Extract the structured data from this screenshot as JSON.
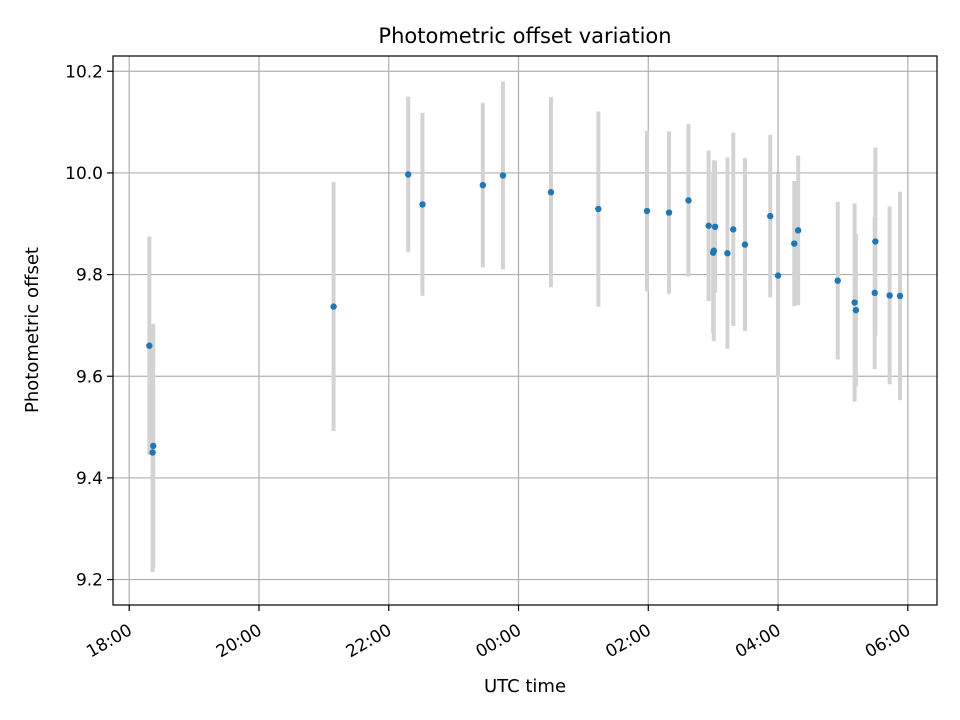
{
  "chart_data": {
    "type": "scatter",
    "title": "Photometric offset variation",
    "xlabel": "UTC time",
    "ylabel": "Photometric offset",
    "x_unit": "hours since 18:00 UTC",
    "xlim": [
      -0.25,
      12.45
    ],
    "ylim": [
      9.15,
      10.23
    ],
    "grid": true,
    "x_ticks": [
      {
        "value": 0,
        "label": "18:00"
      },
      {
        "value": 2,
        "label": "20:00"
      },
      {
        "value": 4,
        "label": "22:00"
      },
      {
        "value": 6,
        "label": "00:00"
      },
      {
        "value": 8,
        "label": "02:00"
      },
      {
        "value": 10,
        "label": "04:00"
      },
      {
        "value": 12,
        "label": "06:00"
      }
    ],
    "y_ticks": [
      {
        "value": 9.2,
        "label": "9.2"
      },
      {
        "value": 9.4,
        "label": "9.4"
      },
      {
        "value": 9.6,
        "label": "9.6"
      },
      {
        "value": 9.8,
        "label": "9.8"
      },
      {
        "value": 10.0,
        "label": "10.0"
      },
      {
        "value": 10.2,
        "label": "10.2"
      }
    ],
    "marker_color": "#1f77b4",
    "errorbar_color": "#d3d3d3",
    "points": [
      {
        "x": 0.31,
        "y": 9.66,
        "err": 0.215
      },
      {
        "x": 0.36,
        "y": 9.45,
        "err": 0.235
      },
      {
        "x": 0.37,
        "y": 9.463,
        "err": 0.24
      },
      {
        "x": 3.15,
        "y": 9.737,
        "err": 0.245
      },
      {
        "x": 4.3,
        "y": 9.997,
        "err": 0.153
      },
      {
        "x": 4.52,
        "y": 9.938,
        "err": 0.18
      },
      {
        "x": 5.45,
        "y": 9.976,
        "err": 0.162
      },
      {
        "x": 5.76,
        "y": 9.995,
        "err": 0.185
      },
      {
        "x": 6.5,
        "y": 9.962,
        "err": 0.187
      },
      {
        "x": 7.23,
        "y": 9.929,
        "err": 0.192
      },
      {
        "x": 7.98,
        "y": 9.925,
        "err": 0.158
      },
      {
        "x": 8.32,
        "y": 9.922,
        "err": 0.16
      },
      {
        "x": 8.62,
        "y": 9.946,
        "err": 0.15
      },
      {
        "x": 8.93,
        "y": 9.896,
        "err": 0.148
      },
      {
        "x": 9.0,
        "y": 9.843,
        "err": 0.158
      },
      {
        "x": 9.01,
        "y": 9.847,
        "err": 0.178
      },
      {
        "x": 9.03,
        "y": 9.894,
        "err": 0.13
      },
      {
        "x": 9.22,
        "y": 9.842,
        "err": 0.188
      },
      {
        "x": 9.31,
        "y": 9.889,
        "err": 0.19
      },
      {
        "x": 9.49,
        "y": 9.859,
        "err": 0.17
      },
      {
        "x": 9.88,
        "y": 9.915,
        "err": 0.16
      },
      {
        "x": 10.0,
        "y": 9.798,
        "err": 0.2
      },
      {
        "x": 10.25,
        "y": 9.861,
        "err": 0.123
      },
      {
        "x": 10.31,
        "y": 9.887,
        "err": 0.147
      },
      {
        "x": 10.92,
        "y": 9.788,
        "err": 0.155
      },
      {
        "x": 11.18,
        "y": 9.745,
        "err": 0.195
      },
      {
        "x": 11.2,
        "y": 9.73,
        "err": 0.15
      },
      {
        "x": 11.49,
        "y": 9.764,
        "err": 0.15
      },
      {
        "x": 11.5,
        "y": 9.865,
        "err": 0.185
      },
      {
        "x": 11.72,
        "y": 9.759,
        "err": 0.175
      },
      {
        "x": 11.88,
        "y": 9.758,
        "err": 0.205
      }
    ]
  }
}
